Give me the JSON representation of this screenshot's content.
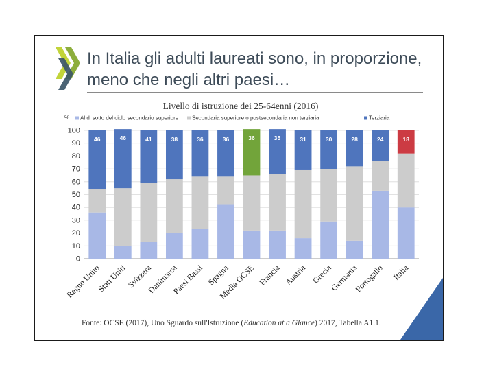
{
  "slide": {
    "title": "In Italia gli adulti laureati sono, in proporzione, meno che negli altri paesi…",
    "logo_icon": "oecd-chevron-logo-icon",
    "source": {
      "prefix": "Fonte: OCSE (2017), Uno Sguardo sull'Istruzione (",
      "italic": "Education at a Glance",
      "suffix": ") 2017, Tabella A1.1."
    }
  },
  "chart_data": {
    "type": "bar",
    "stacked": true,
    "title": "Livello di istruzione dei 25-64enni (2016)",
    "ylabel": "%",
    "ylim": [
      0,
      100
    ],
    "yticks": [
      0,
      10,
      20,
      30,
      40,
      50,
      60,
      70,
      80,
      90,
      100
    ],
    "grid": true,
    "legend_position": "top",
    "categories": [
      "Regno Unito",
      "Stati Uniti",
      "Svizzera",
      "Danimarca",
      "Paesi Bassi",
      "Spagna",
      "Media OCSE",
      "Francia",
      "Austria",
      "Grecia",
      "Germania",
      "Portogallo",
      "Italia"
    ],
    "series": [
      {
        "name": "Al di sotto del ciclo secondario superiore",
        "color": "#a8b8e6",
        "values": [
          36,
          10,
          13,
          20,
          23,
          42,
          22,
          22,
          16,
          29,
          14,
          53,
          40
        ]
      },
      {
        "name": "Secondaria superiore o postsecondaria non terziaria",
        "color": "#cccccc",
        "values": [
          18,
          45,
          46,
          42,
          41,
          22,
          43,
          44,
          53,
          41,
          58,
          23,
          42
        ]
      },
      {
        "name": "Terziaria",
        "color": "#4f75bd",
        "values": [
          46,
          46,
          41,
          38,
          36,
          36,
          36,
          35,
          31,
          30,
          28,
          24,
          18
        ]
      }
    ],
    "highlight": {
      "Media OCSE": "#72a43a",
      "Italia": "#cc3b43"
    },
    "data_labels_series": "Terziaria",
    "data_label_color": "#ffffff"
  }
}
